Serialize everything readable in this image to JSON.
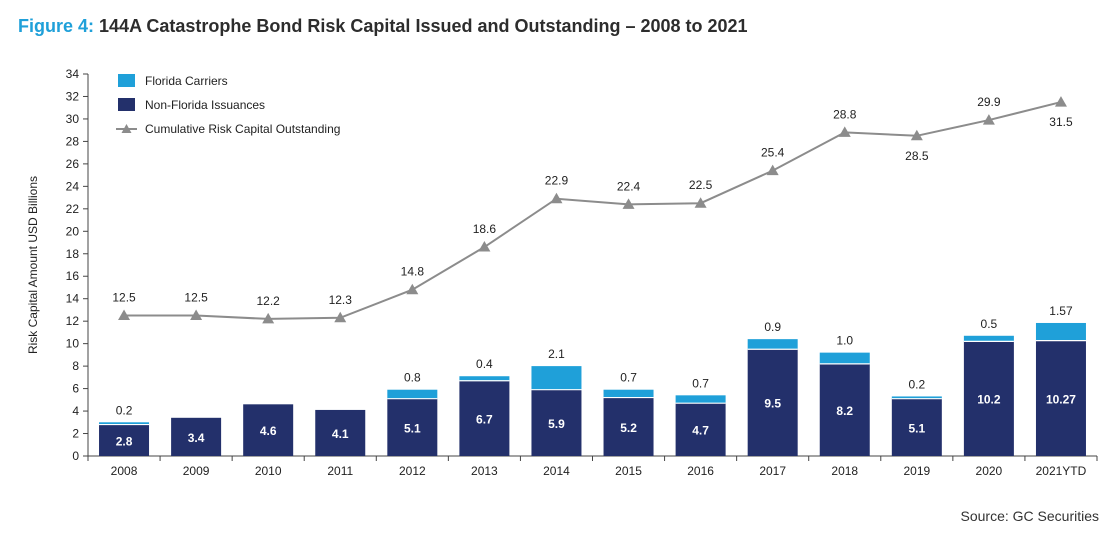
{
  "figure_label": "Figure 4:",
  "title": "144A Catastrophe Bond Risk Capital Issued and Outstanding – 2008 to 2021",
  "source": "Source: GC Securities",
  "colors": {
    "florida": "#1fa0d9",
    "non_florida": "#23306b",
    "cumulative": "#8c8c8c",
    "title_accent": "#1fa0d9"
  },
  "chart_data": {
    "type": "bar",
    "stacked": true,
    "categories": [
      "2008",
      "2009",
      "2010",
      "2011",
      "2012",
      "2013",
      "2014",
      "2015",
      "2016",
      "2017",
      "2018",
      "2019",
      "2020",
      "2021YTD"
    ],
    "series": [
      {
        "name": "Florida Carriers",
        "values": [
          0.2,
          null,
          null,
          null,
          0.8,
          0.4,
          2.1,
          0.7,
          0.7,
          0.9,
          1.0,
          0.2,
          0.5,
          1.57
        ],
        "labels": [
          "0.2",
          "",
          "",
          "",
          "0.8",
          "0.4",
          "2.1",
          "0.7",
          "0.7",
          "0.9",
          "1.0",
          "0.2",
          "0.5",
          "1.57"
        ]
      },
      {
        "name": "Non-Florida Issuances",
        "values": [
          2.8,
          3.4,
          4.6,
          4.1,
          5.1,
          6.7,
          5.9,
          5.2,
          4.7,
          9.5,
          8.2,
          5.1,
          10.2,
          10.27
        ],
        "labels": [
          "2.8",
          "3.4",
          "4.6",
          "4.1",
          "5.1",
          "6.7",
          "5.9",
          "5.2",
          "4.7",
          "9.5",
          "8.2",
          "5.1",
          "10.2",
          "10.27"
        ]
      }
    ],
    "line_series": {
      "name": "Cumulative Risk Capital Outstanding",
      "values": [
        12.5,
        12.5,
        12.2,
        12.3,
        14.8,
        18.6,
        22.9,
        22.4,
        22.5,
        25.4,
        28.8,
        28.5,
        29.9,
        31.5
      ],
      "labels": [
        "12.5",
        "12.5",
        "12.2",
        "12.3",
        "14.8",
        "18.6",
        "22.9",
        "22.4",
        "22.5",
        "25.4",
        "28.8",
        "28.5",
        "29.9",
        "31.5"
      ]
    },
    "ylabel": "Risk Capital Amount USD Billions",
    "ylim": [
      0,
      34
    ],
    "yticks": [
      0,
      2,
      4,
      6,
      8,
      10,
      12,
      14,
      16,
      18,
      20,
      22,
      24,
      26,
      28,
      30,
      32,
      34
    ],
    "grid": false,
    "legend_position": "top-left"
  }
}
